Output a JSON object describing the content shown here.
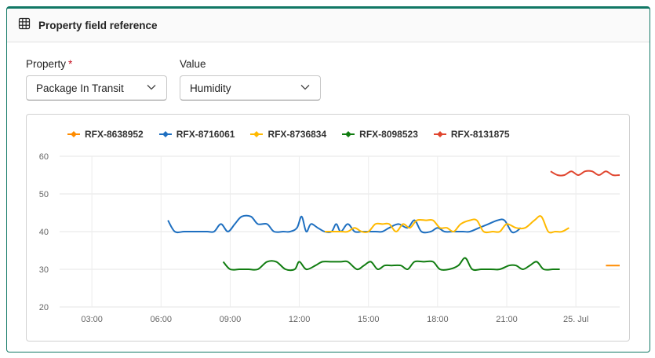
{
  "header": {
    "title": "Property field reference",
    "icon": "table-icon"
  },
  "property_field": {
    "label": "Property",
    "required_mark": "*",
    "value": "Package In Transit"
  },
  "value_field": {
    "label": "Value",
    "value": "Humidity"
  },
  "colors": {
    "accent": "#117865"
  },
  "chart_data": {
    "type": "line",
    "ylim": [
      20,
      60
    ],
    "yticks": [
      "20",
      "30",
      "40",
      "50",
      "60"
    ],
    "xticks": [
      "03:00",
      "06:00",
      "09:00",
      "12:00",
      "15:00",
      "18:00",
      "21:00",
      "25. Jul"
    ],
    "x_unit": "hours since 24 Jul 00:00",
    "xlim": [
      1.6,
      25.9
    ],
    "grid": true,
    "legend_position": "top-left",
    "series": [
      {
        "name": "RFX-8638952",
        "color": "#ff8c00",
        "points": [
          [
            25.3,
            31
          ],
          [
            25.9,
            31
          ]
        ]
      },
      {
        "name": "RFX-8716061",
        "color": "#1e6fc0",
        "points": [
          [
            6.3,
            43
          ],
          [
            6.6,
            40
          ],
          [
            7.0,
            40
          ],
          [
            7.5,
            40
          ],
          [
            8.0,
            40
          ],
          [
            8.3,
            40
          ],
          [
            8.6,
            42
          ],
          [
            8.9,
            40
          ],
          [
            9.2,
            42
          ],
          [
            9.5,
            44
          ],
          [
            9.9,
            44
          ],
          [
            10.2,
            42
          ],
          [
            10.6,
            42
          ],
          [
            10.9,
            40
          ],
          [
            11.3,
            40
          ],
          [
            11.6,
            40
          ],
          [
            11.9,
            41
          ],
          [
            12.1,
            44
          ],
          [
            12.3,
            40
          ],
          [
            12.5,
            42
          ],
          [
            12.8,
            41
          ],
          [
            13.1,
            40
          ],
          [
            13.4,
            40
          ],
          [
            13.6,
            42
          ],
          [
            13.8,
            40
          ],
          [
            14.1,
            42
          ],
          [
            14.4,
            40
          ],
          [
            14.7,
            40
          ],
          [
            15.0,
            40
          ],
          [
            15.3,
            40
          ],
          [
            15.6,
            40
          ],
          [
            15.9,
            41
          ],
          [
            16.3,
            42
          ],
          [
            16.7,
            41
          ],
          [
            17.0,
            43
          ],
          [
            17.3,
            40
          ],
          [
            17.7,
            40
          ],
          [
            18.0,
            41
          ],
          [
            18.3,
            40
          ],
          [
            18.7,
            40
          ],
          [
            19.1,
            40
          ],
          [
            19.4,
            40
          ],
          [
            19.8,
            41
          ],
          [
            20.2,
            42
          ],
          [
            20.6,
            43
          ],
          [
            20.9,
            43
          ],
          [
            21.2,
            40
          ],
          [
            21.4,
            40
          ],
          [
            21.6,
            41
          ]
        ]
      },
      {
        "name": "RFX-8736834",
        "color": "#ffb900",
        "points": [
          [
            13.1,
            40
          ],
          [
            13.5,
            40
          ],
          [
            13.8,
            40
          ],
          [
            14.1,
            40
          ],
          [
            14.4,
            41
          ],
          [
            14.7,
            40
          ],
          [
            15.0,
            40
          ],
          [
            15.3,
            42
          ],
          [
            15.6,
            42
          ],
          [
            15.9,
            42
          ],
          [
            16.2,
            40
          ],
          [
            16.5,
            42
          ],
          [
            16.8,
            41
          ],
          [
            17.1,
            43
          ],
          [
            17.5,
            43
          ],
          [
            17.8,
            43
          ],
          [
            18.1,
            41
          ],
          [
            18.4,
            41
          ],
          [
            18.7,
            40
          ],
          [
            19.0,
            42
          ],
          [
            19.4,
            43
          ],
          [
            19.7,
            43
          ],
          [
            20.0,
            40
          ],
          [
            20.4,
            40
          ],
          [
            20.7,
            40
          ],
          [
            21.0,
            42
          ],
          [
            21.4,
            41
          ],
          [
            21.8,
            41
          ],
          [
            22.2,
            43
          ],
          [
            22.5,
            44
          ],
          [
            22.8,
            40
          ],
          [
            23.1,
            40
          ],
          [
            23.4,
            40
          ],
          [
            23.7,
            41
          ]
        ]
      },
      {
        "name": "RFX-8098523",
        "color": "#107c10",
        "points": [
          [
            8.7,
            32
          ],
          [
            9.0,
            30
          ],
          [
            9.4,
            30
          ],
          [
            9.8,
            30
          ],
          [
            10.2,
            30
          ],
          [
            10.6,
            32
          ],
          [
            11.0,
            32
          ],
          [
            11.4,
            30
          ],
          [
            11.8,
            30
          ],
          [
            12.0,
            32
          ],
          [
            12.3,
            30
          ],
          [
            12.7,
            31
          ],
          [
            13.0,
            32
          ],
          [
            13.4,
            32
          ],
          [
            13.8,
            32
          ],
          [
            14.1,
            32
          ],
          [
            14.5,
            30
          ],
          [
            14.8,
            31
          ],
          [
            15.1,
            32
          ],
          [
            15.4,
            30
          ],
          [
            15.7,
            31
          ],
          [
            16.0,
            31
          ],
          [
            16.4,
            31
          ],
          [
            16.7,
            30
          ],
          [
            17.0,
            32
          ],
          [
            17.4,
            32
          ],
          [
            17.8,
            32
          ],
          [
            18.1,
            30
          ],
          [
            18.5,
            30
          ],
          [
            18.9,
            31
          ],
          [
            19.2,
            33
          ],
          [
            19.5,
            30
          ],
          [
            19.9,
            30
          ],
          [
            20.3,
            30
          ],
          [
            20.7,
            30
          ],
          [
            21.1,
            31
          ],
          [
            21.4,
            31
          ],
          [
            21.7,
            30
          ],
          [
            22.0,
            31
          ],
          [
            22.3,
            32
          ],
          [
            22.6,
            30
          ],
          [
            23.0,
            30
          ],
          [
            23.3,
            30
          ]
        ]
      },
      {
        "name": "RFX-8131875",
        "color": "#e0452e",
        "points": [
          [
            22.9,
            56
          ],
          [
            23.2,
            55
          ],
          [
            23.5,
            55
          ],
          [
            23.8,
            56
          ],
          [
            24.1,
            55
          ],
          [
            24.4,
            56
          ],
          [
            24.7,
            56
          ],
          [
            25.0,
            55
          ],
          [
            25.3,
            56
          ],
          [
            25.6,
            55
          ],
          [
            25.9,
            55
          ],
          [
            26.3,
            55
          ],
          [
            26.7,
            55
          ]
        ]
      }
    ]
  }
}
